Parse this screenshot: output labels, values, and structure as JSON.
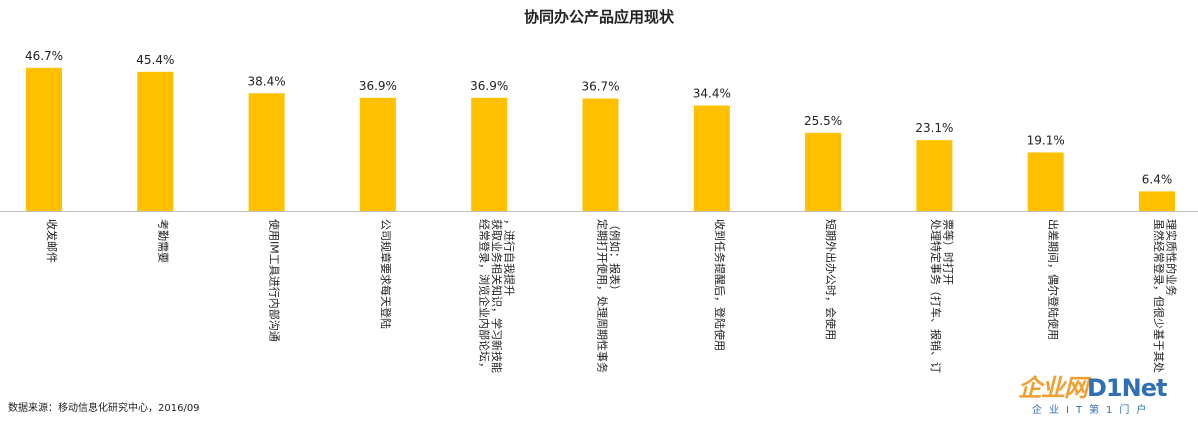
{
  "chart_data": {
    "type": "bar",
    "title": "协同办公产品应用现状",
    "categories": [
      "收发邮件",
      "考勤需要",
      "使用IM工具进行内部沟通",
      "公司规章要求每天登陆",
      "经常登录，浏览企业内部论坛，获取业务相关知识，学习新技能，进行自我提升",
      "定期打开使用，处理周期性事务（例如：报表）",
      "收到任务提醒后，登陆使用",
      "短期外出办公时，会使用",
      "处理特定事务（打车、报销、订票等）时打开",
      "出差期间，偶尔登陆使用",
      "虽然经常登录，但很少基于其处理实质性的业务"
    ],
    "values": [
      46.7,
      45.4,
      38.4,
      36.9,
      36.9,
      36.7,
      34.4,
      25.5,
      23.1,
      19.1,
      6.4
    ],
    "value_labels": [
      "46.7%",
      "45.4%",
      "38.4%",
      "36.9%",
      "36.9%",
      "36.7%",
      "34.4%",
      "25.5%",
      "23.1%",
      "19.1%",
      "6.4%"
    ],
    "ylim": [
      0,
      50
    ],
    "bar_color": "#FFC000",
    "grid": false,
    "legend": "none"
  },
  "source_note": "数据来源：移动信息化研究中心，2016/09",
  "watermark": {
    "main": "企业网",
    "net": "D1Net",
    "sub": "企业IT第1门户"
  }
}
